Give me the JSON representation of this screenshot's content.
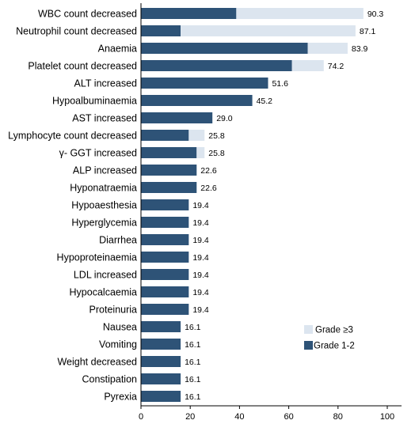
{
  "chart_data": {
    "type": "bar",
    "orientation": "horizontal",
    "stacked": true,
    "categories": [
      "WBC count decreased",
      "Neutrophil count decreased",
      "Anaemia",
      "Platelet count decreased",
      "ALT increased",
      "Hypoalbuminaemia",
      "AST increased",
      "Lymphocyte count decreased",
      "γ- GGT increased",
      "ALP increased",
      "Hyponatraemia",
      "Hypoaesthesia",
      "Hyperglycemia",
      "Diarrhea",
      "Hypoproteinaemia",
      "LDL increased",
      "Hypocalcaemia",
      "Proteinuria",
      "Nausea",
      "Vomiting",
      "Weight decreased",
      "Constipation",
      "Pyrexia"
    ],
    "series": [
      {
        "name": "Grade 1-2",
        "color": "#2e5377",
        "values": [
          38.7,
          16.1,
          67.7,
          61.3,
          51.6,
          45.2,
          29.0,
          19.4,
          22.6,
          22.6,
          22.6,
          19.4,
          19.4,
          19.4,
          19.4,
          19.4,
          19.4,
          19.4,
          16.1,
          16.1,
          16.1,
          16.1,
          16.1
        ]
      },
      {
        "name": "Grade ≥3",
        "color": "#dce5ef",
        "values": [
          51.6,
          71.0,
          16.2,
          12.9,
          0,
          0,
          0,
          6.4,
          3.2,
          0,
          0,
          0,
          0,
          0,
          0,
          0,
          0,
          0,
          0,
          0,
          0,
          0,
          0
        ]
      }
    ],
    "total_labels": [
      "90.3",
      "87.1",
      "83.9",
      "74.2",
      "51.6",
      "45.2",
      "29.0",
      "25.8",
      "25.8",
      "22.6",
      "22.6",
      "19.4",
      "19.4",
      "19.4",
      "19.4",
      "19.4",
      "19.4",
      "19.4",
      "16.1",
      "16.1",
      "16.1",
      "16.1",
      "16.1"
    ],
    "xlim": [
      0,
      100
    ],
    "xticks": [
      "0",
      "20",
      "40",
      "60",
      "80",
      "100"
    ],
    "title": "",
    "xlabel": "",
    "ylabel": "",
    "grid": false,
    "legend": {
      "placement": "bottom-right",
      "entries": [
        "Grade ≥3",
        "Grade 1-2"
      ]
    }
  }
}
